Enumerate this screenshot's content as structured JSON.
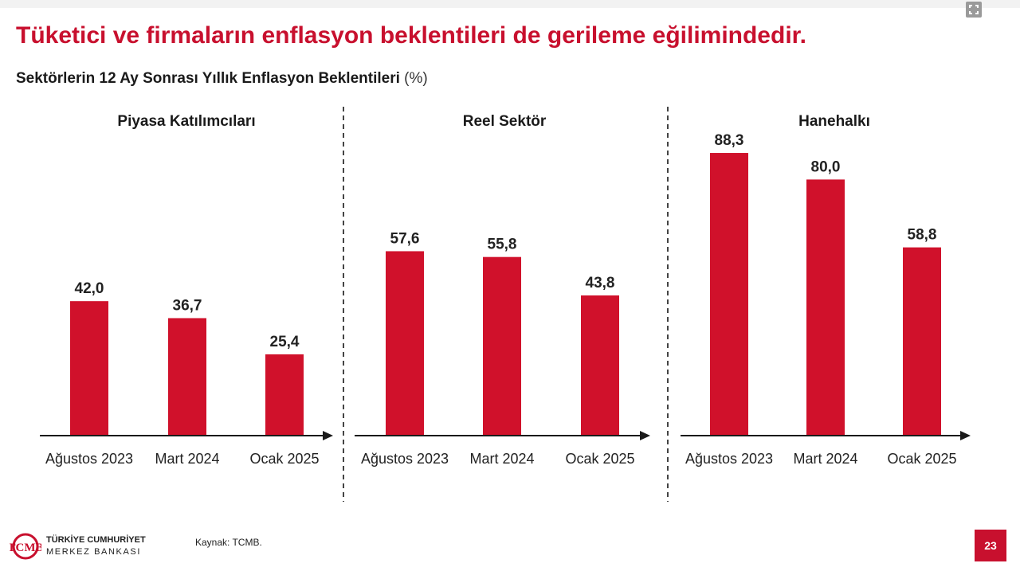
{
  "slide": {
    "headline": "Tüketici ve firmaların enflasyon beklentileri de gerileme eğilimindedir.",
    "subtitle": "Sektörlerin 12 Ay Sonrası Yıllık Enflasyon Beklentileri",
    "subtitle_unit": "(%)",
    "source": "Kaynak: TCMB.",
    "page_number": "23",
    "logo_text": "TCMB",
    "bank_name_line1": "TÜRKİYE CUMHURİYET",
    "bank_name_line2": "MERKEZ BANKASI",
    "expand_icon": "expand-icon"
  },
  "colors": {
    "accent": "#c8102e",
    "bar": "#d0112b",
    "text": "#1a1a1a",
    "axis": "#1a1a1a",
    "divider": "#444444"
  },
  "chart_data": [
    {
      "type": "bar",
      "title": "Piyasa Katılımcıları",
      "categories": [
        "Ağustos 2023",
        "Mart 2024",
        "Ocak 2025"
      ],
      "values": [
        42.0,
        36.7,
        25.4
      ],
      "value_labels": [
        "42,0",
        "36,7",
        "25,4"
      ],
      "ylim": [
        0,
        100
      ]
    },
    {
      "type": "bar",
      "title": "Reel Sektör",
      "categories": [
        "Ağustos 2023",
        "Mart 2024",
        "Ocak 2025"
      ],
      "values": [
        57.6,
        55.8,
        43.8
      ],
      "value_labels": [
        "57,6",
        "55,8",
        "43,8"
      ],
      "ylim": [
        0,
        100
      ]
    },
    {
      "type": "bar",
      "title": "Hanehalkı",
      "categories": [
        "Ağustos 2023",
        "Mart 2024",
        "Ocak 2025"
      ],
      "values": [
        88.3,
        80.0,
        58.8
      ],
      "value_labels": [
        "88,3",
        "80,0",
        "58,8"
      ],
      "ylim": [
        0,
        100
      ]
    }
  ]
}
